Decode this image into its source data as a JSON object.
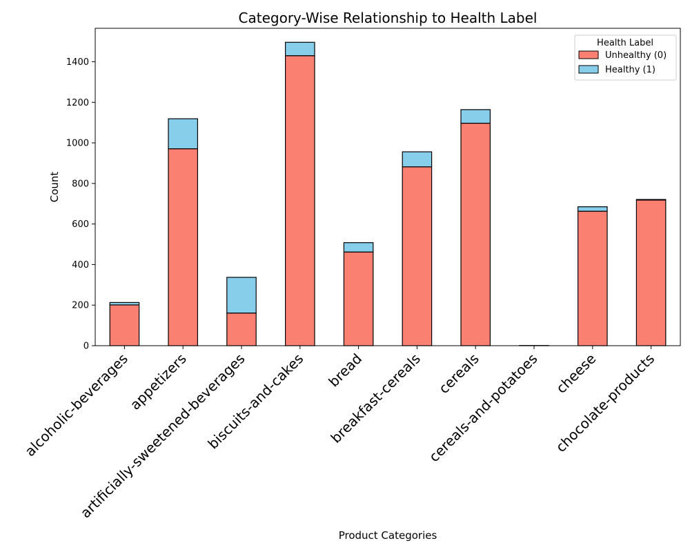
{
  "chart_data": {
    "type": "bar",
    "stacked": true,
    "title": "Category-Wise Relationship to Health Label",
    "xlabel": "Product Categories",
    "ylabel": "Count",
    "ylim": [
      0,
      1565
    ],
    "yticks": [
      0,
      200,
      400,
      600,
      800,
      1000,
      1200,
      1400
    ],
    "categories": [
      "alcoholic-beverages",
      "appetizers",
      "artificially-sweetened-beverages",
      "biscuits-and-cakes",
      "bread",
      "breakfast-cereals",
      "cereals",
      "cereals-and-potatoes",
      "cheese",
      "chocolate-products"
    ],
    "series": [
      {
        "name": "Unhealthy (0)",
        "color": "#FA8072",
        "values": [
          201,
          971,
          161,
          1430,
          462,
          882,
          1097,
          1,
          663,
          718
        ]
      },
      {
        "name": "Healthy (1)",
        "color": "#87CEEB",
        "values": [
          12,
          148,
          176,
          66,
          46,
          74,
          67,
          0,
          22,
          3
        ]
      }
    ],
    "legend": {
      "title": "Health Label",
      "position": "top-right"
    },
    "grid": false
  }
}
